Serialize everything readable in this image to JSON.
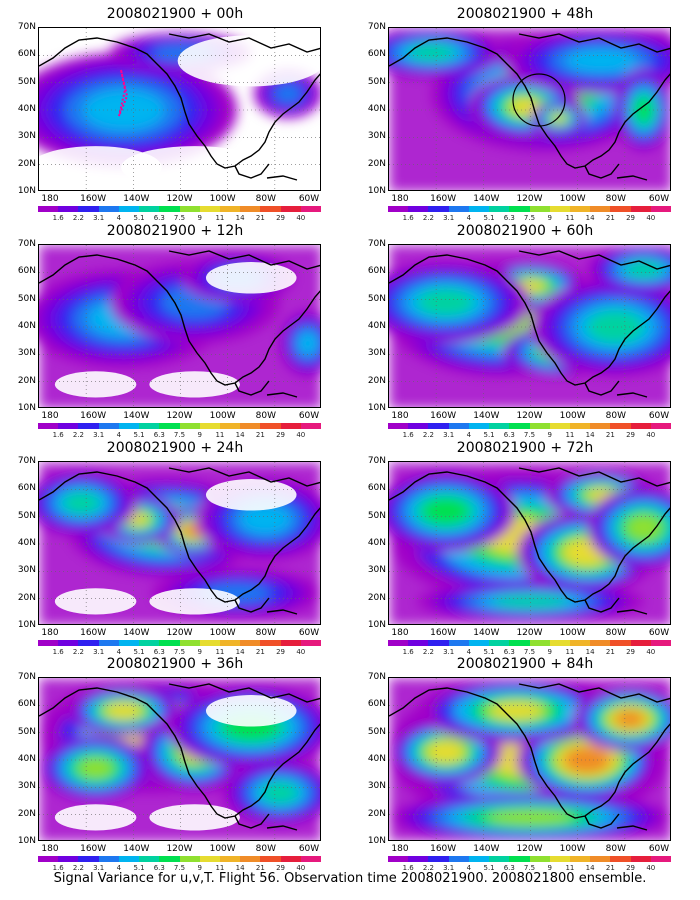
{
  "panels": [
    {
      "title": "2008021900 + 00h"
    },
    {
      "title": "2008021900 + 48h"
    },
    {
      "title": "2008021900 + 12h"
    },
    {
      "title": "2008021900 + 60h"
    },
    {
      "title": "2008021900 + 24h"
    },
    {
      "title": "2008021900 + 72h"
    },
    {
      "title": "2008021900 + 36h"
    },
    {
      "title": "2008021900 + 84h"
    }
  ],
  "lat_labels": [
    "70N",
    "60N",
    "50N",
    "40N",
    "30N",
    "20N",
    "10N"
  ],
  "lon_labels": [
    "180",
    "160W",
    "140W",
    "120W",
    "100W",
    "80W",
    "60W"
  ],
  "colorbar": {
    "colors": [
      "#a000c8",
      "#7000e0",
      "#3020f0",
      "#1e78f0",
      "#00b4f0",
      "#00d2a0",
      "#00e050",
      "#90e030",
      "#e6dc30",
      "#f0b428",
      "#f08c28",
      "#f05028",
      "#e61e3c",
      "#e6197d"
    ],
    "labels": [
      "1.6",
      "2.2",
      "3.1",
      "4",
      "5.1",
      "6.3",
      "7.5",
      "9",
      "11",
      "14",
      "21",
      "29",
      "40"
    ]
  },
  "caption": "Signal Variance for u,v,T. Flight 56. Observation time 2008021900. 2008021800 ensemble."
}
